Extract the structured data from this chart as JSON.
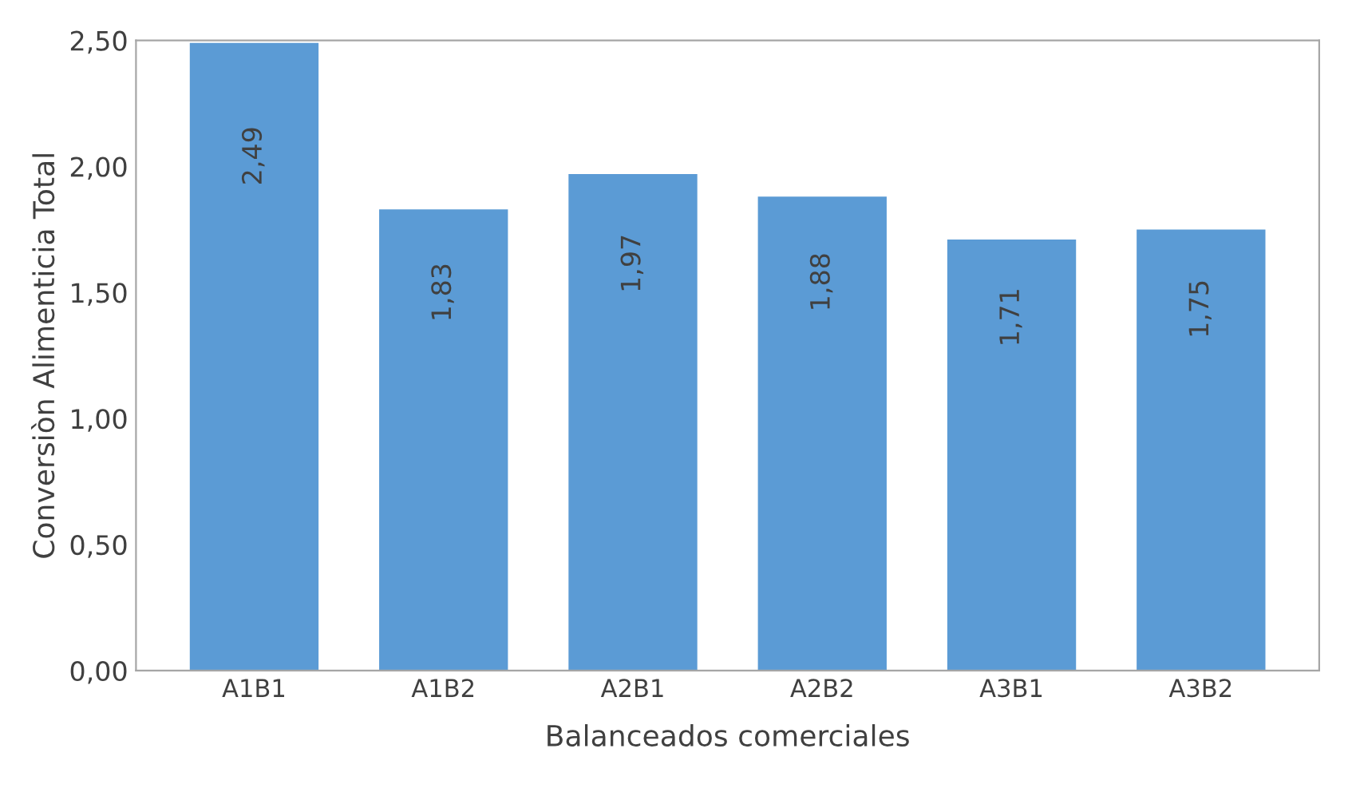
{
  "chart_data": {
    "type": "bar",
    "xlabel": "Balanceados comerciales",
    "ylabel": "Conversiòn Alimenticia Total",
    "categories": [
      "A1B1",
      "A1B2",
      "A2B1",
      "A2B2",
      "A3B1",
      "A3B2"
    ],
    "values": [
      2.49,
      1.83,
      1.97,
      1.88,
      1.71,
      1.75
    ],
    "value_labels": [
      "2,49",
      "1,83",
      "1,97",
      "1,88",
      "1,71",
      "1,75"
    ],
    "color": "#5b9bd5",
    "ylim": [
      0,
      2.5
    ],
    "yticks": [
      {
        "value": 0,
        "label": "0,00"
      },
      {
        "value": 0.5,
        "label": "0,50"
      },
      {
        "value": 1,
        "label": "1,00"
      },
      {
        "value": 1.5,
        "label": "1,50"
      },
      {
        "value": 2,
        "label": "2,00"
      },
      {
        "value": 2.5,
        "label": "2,50"
      }
    ],
    "grid": false
  }
}
